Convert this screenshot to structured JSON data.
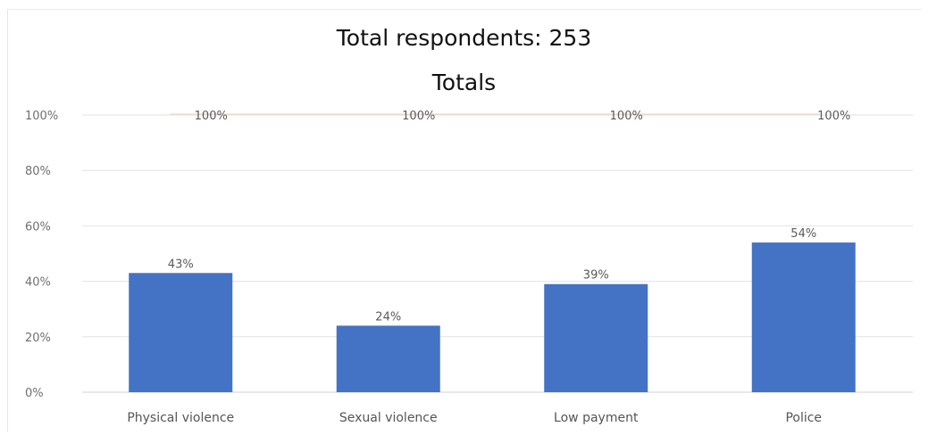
{
  "chart_data": {
    "type": "bar",
    "title": "Total respondents: 253",
    "subtitle": "Totals",
    "categories": [
      "Physical violence",
      "Sexual violence",
      "Low payment",
      "Police"
    ],
    "series": [
      {
        "values": [
          43,
          24,
          39,
          54
        ],
        "labels": [
          "43%",
          "24%",
          "39%",
          "54%"
        ],
        "color": "#4472C4"
      },
      {
        "values": [
          100,
          100,
          100,
          100
        ],
        "labels": [
          "100%",
          "100%",
          "100%",
          "100%"
        ],
        "color": "#ED7D31"
      }
    ],
    "y_ticks": [
      "0%",
      "20%",
      "40%",
      "60%",
      "80%",
      "100%"
    ],
    "ylim": [
      0,
      100
    ],
    "xlabel": "",
    "ylabel": "",
    "grid": true,
    "legend": "none"
  }
}
